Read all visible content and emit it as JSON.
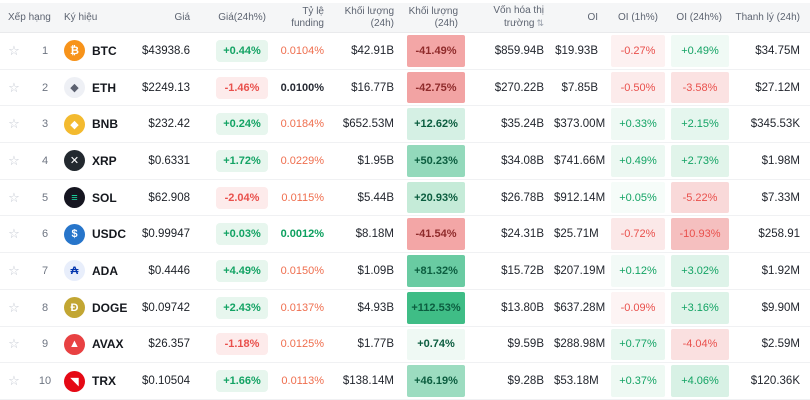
{
  "ui": {
    "star_glyph": "☆",
    "sort_glyph": "⇅"
  },
  "theme": {
    "up_text": "#13a364",
    "down_text": "#e9504c",
    "up_badge_bg": "#e7f6ee",
    "down_badge_bg": "#fdebeb",
    "funding_orange": "#ef6e4e",
    "funding_green": "#0da05f",
    "funding_neutral": "#262a33",
    "heat_up_text": "#0b5d3f",
    "heat_down_text": "#8f2b2b",
    "header_bg": "#f5f6f7",
    "row_border": "#f0f1f3"
  },
  "columns": {
    "rank": "Xếp hạng",
    "symbol": "Ký hiệu",
    "price": "Giá",
    "price_change": "Giá(24h%)",
    "funding": "Tỷ lệ funding",
    "volume": "Khối lượng (24h)",
    "volume_change": "Khối lượng (24h)",
    "mcap": "Vốn hóa thị trường",
    "oi": "OI",
    "oi_1h": "OI (1h%)",
    "oi_24h": "OI (24h%)",
    "liq": "Thanh lý (24h)"
  },
  "rows": [
    {
      "rank": 1,
      "symbol": "BTC",
      "icon": {
        "glyph": "₿",
        "bg": "#f7931a",
        "fg": "#ffffff"
      },
      "price": "$43938.6",
      "price_change": "+0.44%",
      "funding": "0.0104%",
      "funding_style": "hot",
      "volume": "$42.91B",
      "vol_change": "-41.49%",
      "vol_change_bg": "#f3a6a6",
      "mcap": "$859.94B",
      "oi": "$19.93B",
      "oi_1h": "-0.27%",
      "oi_1h_bg": "#fdf1f1",
      "oi_24h": "+0.49%",
      "oi_24h_bg": "#f0faf5",
      "liq": "$34.75M"
    },
    {
      "rank": 2,
      "symbol": "ETH",
      "icon": {
        "glyph": "◆",
        "bg": "#eef0f5",
        "fg": "#5c6170"
      },
      "price": "$2249.13",
      "price_change": "-1.46%",
      "funding": "0.0100%",
      "funding_style": "neutral",
      "volume": "$16.77B",
      "vol_change": "-42.75%",
      "vol_change_bg": "#f2a3a3",
      "mcap": "$270.22B",
      "oi": "$7.85B",
      "oi_1h": "-0.50%",
      "oi_1h_bg": "#fcebeb",
      "oi_24h": "-3.58%",
      "oi_24h_bg": "#fbe2e2",
      "liq": "$27.12M"
    },
    {
      "rank": 3,
      "symbol": "BNB",
      "icon": {
        "glyph": "◆",
        "bg": "#f3ba2f",
        "fg": "#ffffff"
      },
      "price": "$232.42",
      "price_change": "+0.24%",
      "funding": "0.0184%",
      "funding_style": "hot",
      "volume": "$652.53M",
      "vol_change": "+12.62%",
      "vol_change_bg": "#d5f0e4",
      "mcap": "$35.24B",
      "oi": "$373.00M",
      "oi_1h": "+0.33%",
      "oi_1h_bg": "#eff9f4",
      "oi_24h": "+2.15%",
      "oi_24h_bg": "#e5f6ee",
      "liq": "$345.53K"
    },
    {
      "rank": 4,
      "symbol": "XRP",
      "icon": {
        "glyph": "✕",
        "bg": "#23292f",
        "fg": "#ffffff"
      },
      "price": "$0.6331",
      "price_change": "+1.72%",
      "funding": "0.0229%",
      "funding_style": "hot",
      "volume": "$1.95B",
      "vol_change": "+50.23%",
      "vol_change_bg": "#93d9bb",
      "mcap": "$34.08B",
      "oi": "$741.66M",
      "oi_1h": "+0.49%",
      "oi_1h_bg": "#ecf8f2",
      "oi_24h": "+2.73%",
      "oi_24h_bg": "#e1f4ea",
      "liq": "$1.98M"
    },
    {
      "rank": 5,
      "symbol": "SOL",
      "icon": {
        "glyph": "≡",
        "bg": "#151520",
        "fg": "#1ce0a8"
      },
      "price": "$62.908",
      "price_change": "-2.04%",
      "funding": "0.0115%",
      "funding_style": "hot",
      "volume": "$5.44B",
      "vol_change": "+20.93%",
      "vol_change_bg": "#c5ebd8",
      "mcap": "$26.78B",
      "oi": "$912.14M",
      "oi_1h": "+0.05%",
      "oi_1h_bg": "#f6fcf9",
      "oi_24h": "-5.22%",
      "oi_24h_bg": "#f9d9d9",
      "liq": "$7.33M"
    },
    {
      "rank": 6,
      "symbol": "USDC",
      "icon": {
        "glyph": "$",
        "bg": "#2775ca",
        "fg": "#ffffff"
      },
      "price": "$0.99947",
      "price_change": "+0.03%",
      "funding": "0.0012%",
      "funding_style": "green",
      "volume": "$8.18M",
      "vol_change": "-41.54%",
      "vol_change_bg": "#f3a6a6",
      "mcap": "$24.31B",
      "oi": "$25.71M",
      "oi_1h": "-0.72%",
      "oi_1h_bg": "#fbe8e8",
      "oi_24h": "-10.93%",
      "oi_24h_bg": "#f5bfbf",
      "liq": "$258.91"
    },
    {
      "rank": 7,
      "symbol": "ADA",
      "icon": {
        "glyph": "₳",
        "bg": "#e8eefb",
        "fg": "#0033ad"
      },
      "price": "$0.4446",
      "price_change": "+4.49%",
      "funding": "0.0150%",
      "funding_style": "hot",
      "volume": "$1.09B",
      "vol_change": "+81.32%",
      "vol_change_bg": "#69cba2",
      "mcap": "$15.72B",
      "oi": "$207.19M",
      "oi_1h": "+0.12%",
      "oi_1h_bg": "#f3faf7",
      "oi_24h": "+3.02%",
      "oi_24h_bg": "#def3e9",
      "liq": "$1.92M"
    },
    {
      "rank": 8,
      "symbol": "DOGE",
      "icon": {
        "glyph": "Ð",
        "bg": "#c2a633",
        "fg": "#ffffff"
      },
      "price": "$0.09742",
      "price_change": "+2.43%",
      "funding": "0.0137%",
      "funding_style": "hot",
      "volume": "$4.93B",
      "vol_change": "+112.53%",
      "vol_change_bg": "#3fbd86",
      "mcap": "$13.80B",
      "oi": "$637.28M",
      "oi_1h": "-0.09%",
      "oi_1h_bg": "#fdf4f4",
      "oi_24h": "+3.16%",
      "oi_24h_bg": "#ddf3e8",
      "liq": "$9.90M"
    },
    {
      "rank": 9,
      "symbol": "AVAX",
      "icon": {
        "glyph": "▲",
        "bg": "#e84142",
        "fg": "#ffffff"
      },
      "price": "$26.357",
      "price_change": "-1.18%",
      "funding": "0.0125%",
      "funding_style": "hot",
      "volume": "$1.77B",
      "vol_change": "+0.74%",
      "vol_change_bg": "#eff9f4",
      "mcap": "$9.59B",
      "oi": "$288.98M",
      "oi_1h": "+0.77%",
      "oi_1h_bg": "#e8f7f0",
      "oi_24h": "-4.04%",
      "oi_24h_bg": "#fae0e0",
      "liq": "$2.59M"
    },
    {
      "rank": 10,
      "symbol": "TRX",
      "icon": {
        "glyph": "◥",
        "bg": "#e50915",
        "fg": "#ffffff"
      },
      "price": "$0.10504",
      "price_change": "+1.66%",
      "funding": "0.0113%",
      "funding_style": "hot",
      "volume": "$138.14M",
      "vol_change": "+46.19%",
      "vol_change_bg": "#9cdcc0",
      "mcap": "$9.28B",
      "oi": "$53.18M",
      "oi_1h": "+0.37%",
      "oi_1h_bg": "#eef9f3",
      "oi_24h": "+4.06%",
      "oi_24h_bg": "#d8f1e5",
      "liq": "$120.36K"
    }
  ]
}
